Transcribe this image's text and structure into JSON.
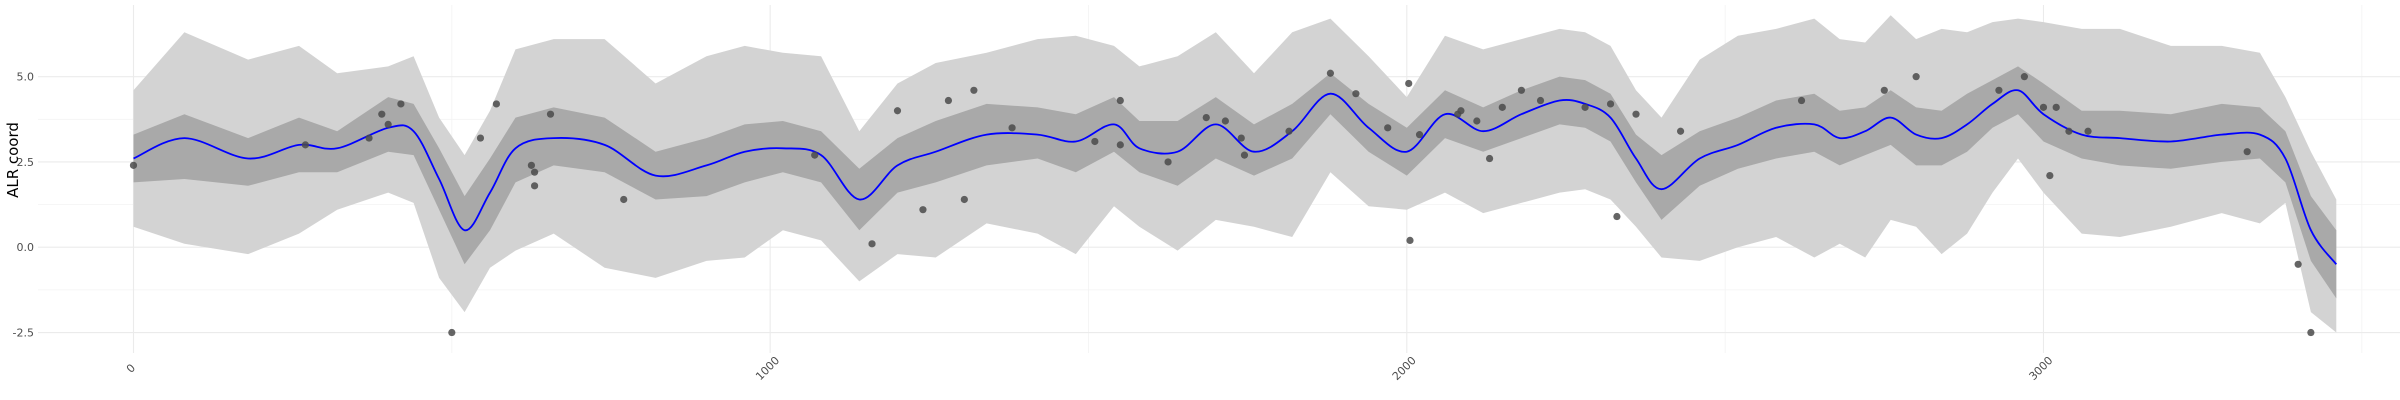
{
  "chart_data": {
    "type": "line",
    "title": "",
    "xlabel": "",
    "ylabel": "ALR coord",
    "xlim": [
      -150,
      3560
    ],
    "ylim": [
      -3.1,
      7.1
    ],
    "x_ticks": [
      0,
      1000,
      2000,
      3000
    ],
    "x_tick_labels": [
      "0",
      "1000",
      "2000",
      "3000"
    ],
    "x_tick_rotation_deg": 45,
    "y_ticks": [
      -2.5,
      0.0,
      2.5,
      5.0
    ],
    "y_tick_labels": [
      "-2.5",
      "0.0",
      "2.5",
      "5.0"
    ],
    "grid": true,
    "legend": "none",
    "colors": {
      "mean_line": "#0000ff",
      "inner_band": "#a9a9a9",
      "outer_band": "#d3d3d3",
      "points": "#4a4a4a",
      "grid_major": "#ebebeb",
      "grid_minor": "#f3f3f3"
    },
    "mean_curve": {
      "x": [
        0,
        80,
        180,
        260,
        320,
        400,
        440,
        480,
        520,
        560,
        600,
        660,
        740,
        820,
        900,
        960,
        1020,
        1080,
        1140,
        1200,
        1260,
        1340,
        1420,
        1480,
        1540,
        1580,
        1640,
        1700,
        1760,
        1820,
        1880,
        1940,
        2000,
        2060,
        2120,
        2180,
        2240,
        2280,
        2320,
        2360,
        2400,
        2460,
        2520,
        2580,
        2640,
        2680,
        2720,
        2760,
        2800,
        2840,
        2880,
        2920,
        2960,
        3000,
        3060,
        3120,
        3200,
        3280,
        3340,
        3380,
        3420,
        3460
      ],
      "y": [
        2.6,
        3.2,
        2.6,
        3.0,
        2.9,
        3.5,
        3.4,
        2.0,
        0.5,
        1.6,
        2.9,
        3.2,
        3.0,
        2.1,
        2.4,
        2.8,
        2.9,
        2.7,
        1.4,
        2.4,
        2.8,
        3.3,
        3.3,
        3.1,
        3.6,
        2.9,
        2.8,
        3.6,
        2.8,
        3.4,
        4.5,
        3.5,
        2.8,
        3.9,
        3.4,
        3.9,
        4.3,
        4.2,
        3.8,
        2.6,
        1.7,
        2.6,
        3.0,
        3.5,
        3.6,
        3.2,
        3.4,
        3.8,
        3.3,
        3.2,
        3.6,
        4.2,
        4.6,
        3.9,
        3.3,
        3.2,
        3.1,
        3.3,
        3.3,
        2.6,
        0.5,
        -0.5
      ]
    },
    "inner_band": {
      "x": [
        0,
        80,
        180,
        260,
        320,
        400,
        440,
        480,
        520,
        560,
        600,
        660,
        740,
        820,
        900,
        960,
        1020,
        1080,
        1140,
        1200,
        1260,
        1340,
        1420,
        1480,
        1540,
        1580,
        1640,
        1700,
        1760,
        1820,
        1880,
        1940,
        2000,
        2060,
        2120,
        2180,
        2240,
        2280,
        2320,
        2360,
        2400,
        2460,
        2520,
        2580,
        2640,
        2680,
        2720,
        2760,
        2800,
        2840,
        2880,
        2920,
        2960,
        3000,
        3060,
        3120,
        3200,
        3280,
        3340,
        3380,
        3420,
        3460
      ],
      "lower": [
        1.9,
        2.0,
        1.8,
        2.2,
        2.2,
        2.8,
        2.7,
        1.1,
        -0.5,
        0.5,
        1.9,
        2.4,
        2.2,
        1.4,
        1.5,
        1.9,
        2.2,
        1.9,
        0.5,
        1.6,
        1.9,
        2.4,
        2.6,
        2.2,
        2.8,
        2.2,
        1.8,
        2.6,
        2.1,
        2.6,
        3.9,
        2.8,
        2.1,
        3.2,
        2.8,
        3.2,
        3.6,
        3.5,
        3.1,
        1.9,
        0.8,
        1.8,
        2.3,
        2.6,
        2.8,
        2.4,
        2.7,
        3.0,
        2.4,
        2.4,
        2.8,
        3.5,
        3.9,
        3.1,
        2.6,
        2.4,
        2.3,
        2.5,
        2.6,
        1.9,
        -0.4,
        -1.5
      ],
      "upper": [
        3.3,
        3.9,
        3.2,
        3.8,
        3.4,
        4.4,
        4.2,
        2.9,
        1.5,
        2.6,
        3.8,
        4.1,
        3.8,
        2.8,
        3.2,
        3.6,
        3.7,
        3.4,
        2.3,
        3.2,
        3.7,
        4.2,
        4.1,
        3.9,
        4.4,
        3.7,
        3.7,
        4.4,
        3.6,
        4.2,
        5.1,
        4.2,
        3.5,
        4.6,
        4.1,
        4.6,
        5.0,
        4.9,
        4.5,
        3.3,
        2.7,
        3.4,
        3.8,
        4.3,
        4.5,
        4.0,
        4.1,
        4.6,
        4.1,
        4.0,
        4.5,
        4.9,
        5.3,
        4.8,
        4.0,
        4.0,
        3.9,
        4.2,
        4.1,
        3.4,
        1.5,
        0.5
      ]
    },
    "outer_band": {
      "x": [
        0,
        80,
        180,
        260,
        320,
        400,
        440,
        480,
        520,
        560,
        600,
        660,
        740,
        820,
        900,
        960,
        1020,
        1080,
        1140,
        1200,
        1260,
        1340,
        1420,
        1480,
        1540,
        1580,
        1640,
        1700,
        1760,
        1820,
        1880,
        1940,
        2000,
        2060,
        2120,
        2180,
        2240,
        2280,
        2320,
        2360,
        2400,
        2460,
        2520,
        2580,
        2640,
        2680,
        2720,
        2760,
        2800,
        2840,
        2880,
        2920,
        2960,
        3000,
        3060,
        3120,
        3200,
        3280,
        3340,
        3380,
        3420,
        3460
      ],
      "lower": [
        0.6,
        0.1,
        -0.2,
        0.4,
        1.1,
        1.6,
        1.3,
        -0.9,
        -1.9,
        -0.6,
        -0.1,
        0.4,
        -0.6,
        -0.9,
        -0.4,
        -0.3,
        0.5,
        0.2,
        -1.0,
        -0.2,
        -0.3,
        0.7,
        0.4,
        -0.2,
        1.2,
        0.6,
        -0.1,
        0.8,
        0.6,
        0.3,
        2.2,
        1.2,
        1.1,
        1.6,
        1.0,
        1.3,
        1.6,
        1.7,
        1.4,
        0.6,
        -0.3,
        -0.4,
        0.0,
        0.3,
        -0.3,
        0.1,
        -0.3,
        0.8,
        0.6,
        -0.2,
        0.4,
        1.6,
        2.6,
        1.6,
        0.4,
        0.3,
        0.6,
        1.0,
        0.7,
        1.3,
        -1.9,
        -2.5
      ],
      "upper": [
        4.6,
        6.3,
        5.5,
        5.9,
        5.1,
        5.3,
        5.6,
        3.8,
        2.7,
        4.0,
        5.8,
        6.1,
        6.1,
        4.8,
        5.6,
        5.9,
        5.7,
        5.6,
        3.4,
        4.8,
        5.4,
        5.7,
        6.1,
        6.2,
        5.9,
        5.3,
        5.6,
        6.3,
        5.1,
        6.3,
        6.7,
        5.6,
        4.4,
        6.2,
        5.8,
        6.1,
        6.4,
        6.3,
        5.9,
        4.6,
        3.8,
        5.5,
        6.2,
        6.4,
        6.7,
        6.1,
        6.0,
        6.8,
        6.1,
        6.4,
        6.3,
        6.6,
        6.7,
        6.6,
        6.4,
        6.4,
        5.9,
        5.9,
        5.7,
        4.4,
        2.8,
        1.4
      ]
    },
    "points": {
      "x": [
        0,
        270,
        370,
        390,
        400,
        420,
        500,
        545,
        570,
        625,
        630,
        630,
        655,
        770,
        1070,
        1160,
        1200,
        1240,
        1280,
        1305,
        1320,
        1380,
        1510,
        1550,
        1550,
        1625,
        1685,
        1715,
        1740,
        1745,
        1815,
        1880,
        1920,
        1970,
        2003,
        2005,
        2020,
        2080,
        2085,
        2110,
        2130,
        2150,
        2180,
        2210,
        2280,
        2320,
        2330,
        2360,
        2430,
        2620,
        2750,
        2800,
        2930,
        2970,
        3000,
        3010,
        3020,
        3040,
        3070,
        3320,
        3400,
        3420
      ],
      "y": [
        2.4,
        3.0,
        3.2,
        3.9,
        3.6,
        4.2,
        -2.5,
        3.2,
        4.2,
        2.4,
        2.2,
        1.8,
        3.9,
        1.4,
        2.7,
        0.1,
        4.0,
        1.1,
        4.3,
        1.4,
        4.6,
        3.5,
        3.1,
        4.3,
        3.0,
        2.5,
        3.8,
        3.7,
        3.2,
        2.7,
        3.4,
        5.1,
        4.5,
        3.5,
        4.8,
        0.2,
        3.3,
        3.9,
        4.0,
        3.7,
        2.6,
        4.1,
        4.6,
        4.3,
        4.1,
        4.2,
        0.9,
        3.9,
        3.4,
        4.3,
        4.6,
        5.0,
        4.6,
        5.0,
        4.1,
        2.1,
        4.1,
        3.4,
        3.4,
        2.8,
        -0.5,
        -2.5
      ]
    }
  }
}
